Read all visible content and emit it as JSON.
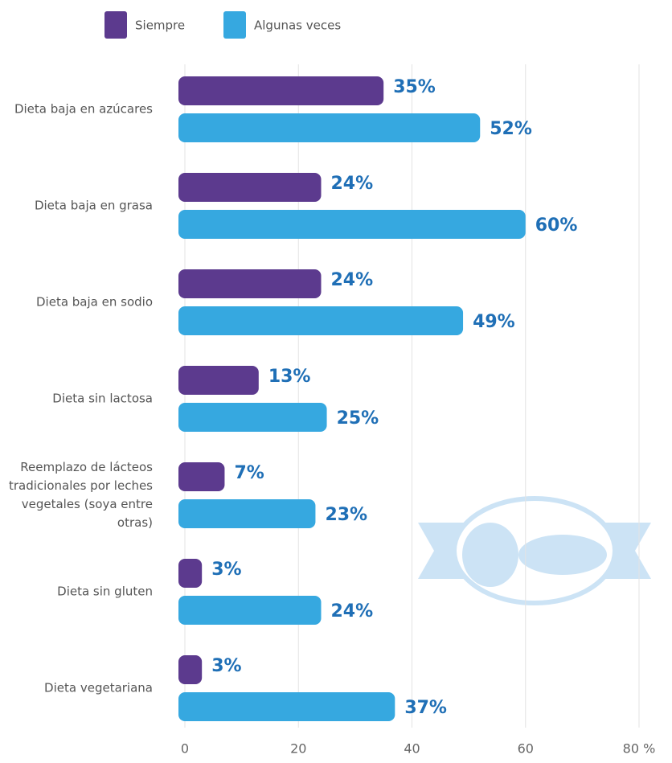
{
  "chart_data": {
    "type": "bar",
    "orientation": "horizontal",
    "categories": [
      "Dieta baja en azúcares",
      "Dieta baja en grasa",
      "Dieta baja en sodio",
      "Dieta sin lactosa",
      "Reemplazo de lácteos tradicionales por leches vegetales (soya entre otras)",
      "Dieta sin gluten",
      "Dieta vegetariana"
    ],
    "series": [
      {
        "name": "Siempre",
        "color": "#5c3a8e",
        "values": [
          35,
          24,
          24,
          13,
          7,
          3,
          3
        ],
        "value_labels": [
          "35%",
          "24%",
          "24%",
          "13%",
          "7%",
          "3%",
          "3%"
        ]
      },
      {
        "name": "Algunas veces",
        "color": "#36a8e0",
        "values": [
          52,
          60,
          49,
          25,
          23,
          24,
          37
        ],
        "value_labels": [
          "52%",
          "60%",
          "49%",
          "25%",
          "23%",
          "24%",
          "37%"
        ]
      }
    ],
    "xlim": [
      0,
      80
    ],
    "xticks": [
      0,
      20,
      40,
      60,
      {
        "value": 80,
        "label": "80 %"
      }
    ],
    "grid": true,
    "legend": "top"
  }
}
